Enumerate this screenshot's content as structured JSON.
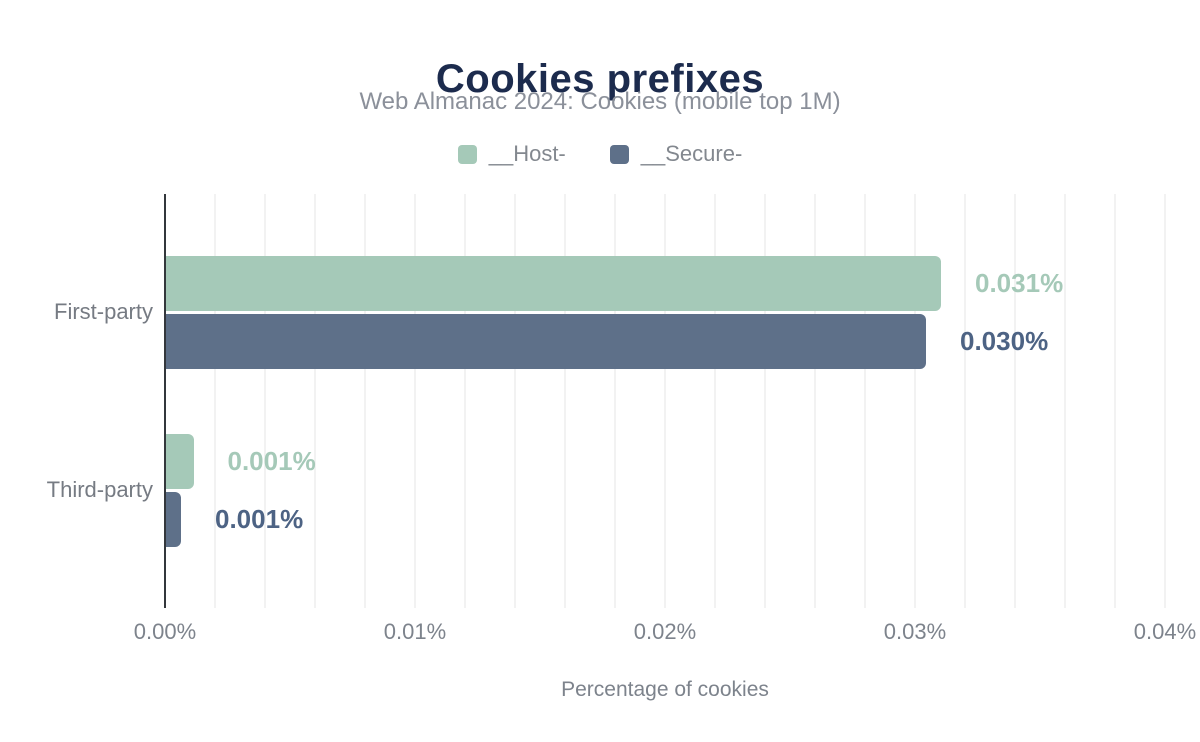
{
  "header": {
    "title": "Cookies prefixes",
    "subtitle": "Web Almanac 2024: Cookies (mobile top 1M)"
  },
  "legend": {
    "items": [
      {
        "id": "host",
        "label": "__Host-",
        "color": "#a5c9b8"
      },
      {
        "id": "secure",
        "label": "__Secure-",
        "color": "#5e7089"
      }
    ]
  },
  "chart_data": {
    "type": "bar",
    "orientation": "horizontal",
    "title": "Cookies prefixes",
    "subtitle": "Web Almanac 2024: Cookies (mobile top 1M)",
    "categories": [
      "First-party",
      "Third-party"
    ],
    "series": [
      {
        "name": "__Host-",
        "color": "#a5c9b8",
        "label_color": "#a5c9b8",
        "values": [
          0.031,
          0.0011
        ],
        "labels": [
          "0.031%",
          "0.001%"
        ]
      },
      {
        "name": "__Secure-",
        "color": "#5e7089",
        "label_color": "#4d6384",
        "values": [
          0.0304,
          0.0006
        ],
        "labels": [
          "0.030%",
          "0.001%"
        ]
      }
    ],
    "x_axis": {
      "title": "Percentage of cookies",
      "min": 0,
      "max": 0.04,
      "tick_step": 0.01,
      "grid_step": 0.002,
      "tick_labels": [
        "0.00%",
        "0.01%",
        "0.02%",
        "0.03%",
        "0.04%"
      ]
    },
    "grid": true,
    "legend_position": "top"
  },
  "colors": {
    "title_navy": "#1c2b4d",
    "host_green": "#a5c9b8",
    "secure_slate": "#5e7089",
    "secure_value_label": "#4d6384",
    "axis_line": "#33373c",
    "gridline": "#f2f2f2",
    "muted_text": "#7d838c",
    "category_text": "#767b83",
    "subtitle_text": "#8b909a"
  }
}
